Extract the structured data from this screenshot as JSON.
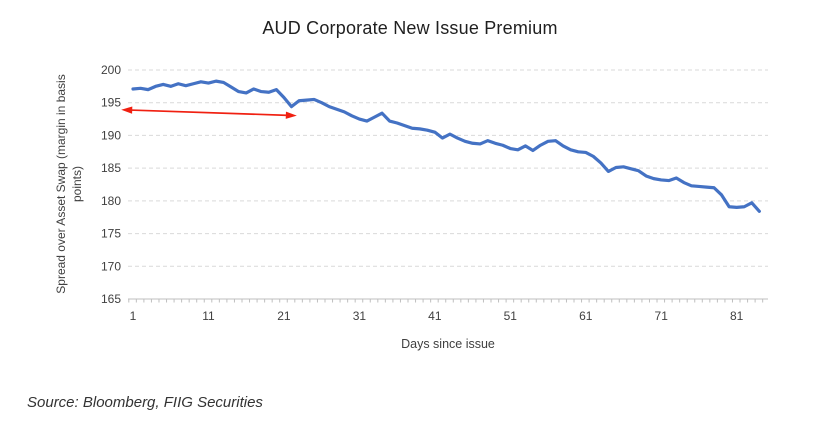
{
  "chart": {
    "title": "AUD Corporate New Issue Premium",
    "source_note": "Source: Bloomberg, FIIG Securities"
  },
  "axes": {
    "y_title_lines": [
      "Spread over Asset Swap (margin in basis",
      "points)"
    ],
    "x_title": "Days since issue"
  },
  "colors": {
    "line": "#4472C4",
    "arrow": "#F02011",
    "gridline": "#D9D9D9",
    "axis_line": "#BFBFBF",
    "tick_text": "#404040",
    "title_text": "#1f1f1f",
    "background": "#ffffff"
  },
  "chart_data": {
    "type": "line",
    "title": "AUD Corporate New Issue Premium",
    "xlabel": "Days since issue",
    "ylabel": "Spread over Asset Swap (margin in basis points)",
    "x_first": 1,
    "x_step": 1,
    "x_last": 84,
    "xticks": [
      1,
      11,
      21,
      31,
      41,
      51,
      61,
      71,
      81
    ],
    "yticks": [
      165,
      170,
      175,
      180,
      185,
      190,
      195,
      200
    ],
    "xlim": [
      1,
      85
    ],
    "ylim": [
      165,
      200
    ],
    "grid": "horizontal-dashed",
    "legend": "none",
    "series": [
      {
        "color": "#4472C4",
        "values": [
          197.1,
          197.2,
          197.0,
          197.5,
          197.8,
          197.5,
          197.9,
          197.6,
          197.9,
          198.2,
          198.0,
          198.3,
          198.1,
          197.4,
          196.7,
          196.5,
          197.1,
          196.7,
          196.6,
          197.0,
          195.8,
          194.4,
          195.3,
          195.4,
          195.5,
          195.0,
          194.4,
          194.0,
          193.6,
          193.0,
          192.5,
          192.2,
          192.8,
          193.4,
          192.2,
          191.9,
          191.5,
          191.1,
          191.0,
          190.8,
          190.5,
          189.6,
          190.2,
          189.6,
          189.1,
          188.8,
          188.7,
          189.2,
          188.8,
          188.5,
          188.0,
          187.8,
          188.4,
          187.7,
          188.5,
          189.1,
          189.2,
          188.4,
          187.8,
          187.5,
          187.4,
          186.8,
          185.8,
          184.5,
          185.1,
          185.2,
          184.9,
          184.6,
          183.8,
          183.4,
          183.2,
          183.1,
          183.5,
          182.8,
          182.3,
          182.2,
          182.1,
          182.0,
          180.9,
          179.1,
          179.0,
          179.1,
          179.7,
          178.4
        ]
      }
    ],
    "annotations": [
      {
        "type": "double-headed-arrow",
        "color": "#F02011",
        "from": {
          "x": 0.1,
          "y": 193.9
        },
        "to": {
          "x": 22.05,
          "y": 193.05
        }
      }
    ]
  }
}
